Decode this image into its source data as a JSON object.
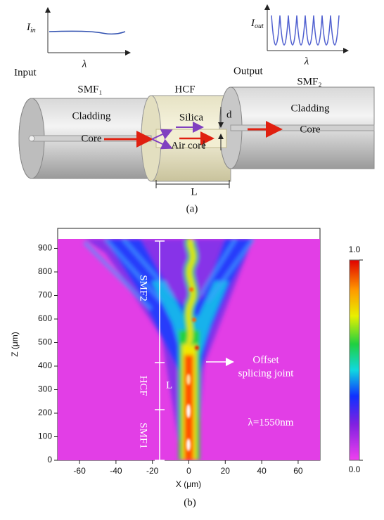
{
  "panel_a": {
    "label": "(a)",
    "input": "Input",
    "output": "Output",
    "i_in": {
      "symbol": "I",
      "subscript": "in"
    },
    "i_out": {
      "symbol": "I",
      "subscript": "out"
    },
    "lambda_in": "λ",
    "lambda_out": "λ",
    "smf1": "SMF₁",
    "hcf": "HCF",
    "smf2": "SMF₂",
    "cladding_left": "Cladding",
    "core_left": "Core",
    "silica": "Silica",
    "air_core": "Air core",
    "d": "d",
    "length": "L",
    "cladding_right": "Cladding",
    "core_right": "Core"
  },
  "chart_data": {
    "type": "heatmap",
    "xlabel": "X (μm)",
    "ylabel": "Z (μm)",
    "xlim": [
      -72,
      72
    ],
    "ylim": [
      0,
      985
    ],
    "xticks": [
      -60,
      -40,
      -20,
      0,
      20,
      40,
      60
    ],
    "yticks": [
      0,
      100,
      200,
      300,
      400,
      500,
      600,
      700,
      800,
      900
    ],
    "colorbar": {
      "lim": [
        0,
        1
      ],
      "ticks": [
        {
          "value": 1,
          "label": "1.0"
        },
        {
          "value": 0,
          "label": "0.0"
        }
      ]
    },
    "annotations": {
      "smf2": "SMF2",
      "hcf": "HCF",
      "smf1": "SMF1",
      "length": "L",
      "joint": [
        "Offset",
        "splicing joint"
      ],
      "wavelength": "λ=1550nm"
    },
    "label": "(b)"
  }
}
